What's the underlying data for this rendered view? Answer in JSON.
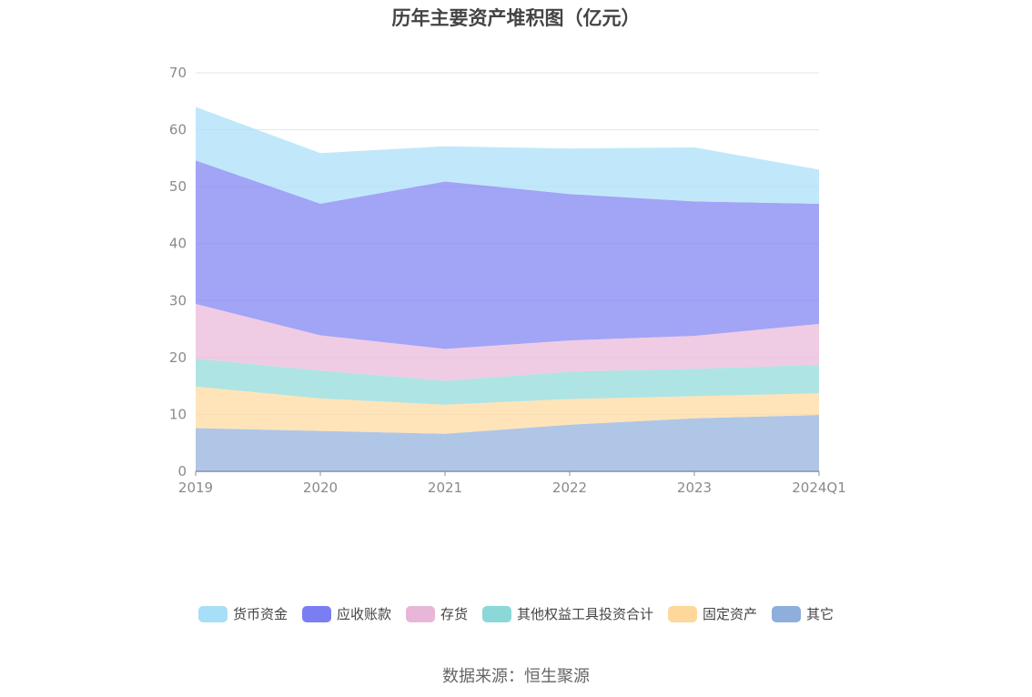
{
  "chart_data": {
    "type": "area",
    "stacked": true,
    "title": "历年主要资产堆积图（亿元）",
    "categories": [
      "2019",
      "2020",
      "2021",
      "2022",
      "2023",
      "2024Q1"
    ],
    "ylim": [
      0,
      70
    ],
    "yticks": [
      "0",
      "10",
      "20",
      "30",
      "40",
      "50",
      "60",
      "70"
    ],
    "grid": true,
    "legend_position": "bottom",
    "series": [
      {
        "name": "其它",
        "color": "#8eaedb",
        "values": [
          7.6,
          7.1,
          6.6,
          8.2,
          9.3,
          9.9
        ]
      },
      {
        "name": "固定资产",
        "color": "#fdd89a",
        "values": [
          7.3,
          5.7,
          5.1,
          4.5,
          3.9,
          3.8
        ]
      },
      {
        "name": "其他权益工具投资合计",
        "color": "#8cd8d8",
        "values": [
          4.9,
          4.9,
          4.2,
          4.8,
          4.8,
          5.0
        ]
      },
      {
        "name": "存货",
        "color": "#e8b7d8",
        "values": [
          9.6,
          6.2,
          5.6,
          5.5,
          5.8,
          7.2
        ]
      },
      {
        "name": "应收账款",
        "color": "#7b7ef2",
        "values": [
          25.2,
          23.1,
          29.4,
          25.7,
          23.6,
          21.1
        ]
      },
      {
        "name": "货币资金",
        "color": "#a7def8",
        "values": [
          9.4,
          8.9,
          6.2,
          8.0,
          9.5,
          6.0
        ]
      }
    ]
  },
  "legend_order": [
    "货币资金",
    "应收账款",
    "存货",
    "其他权益工具投资合计",
    "固定资产",
    "其它"
  ],
  "source": "数据来源：恒生聚源"
}
